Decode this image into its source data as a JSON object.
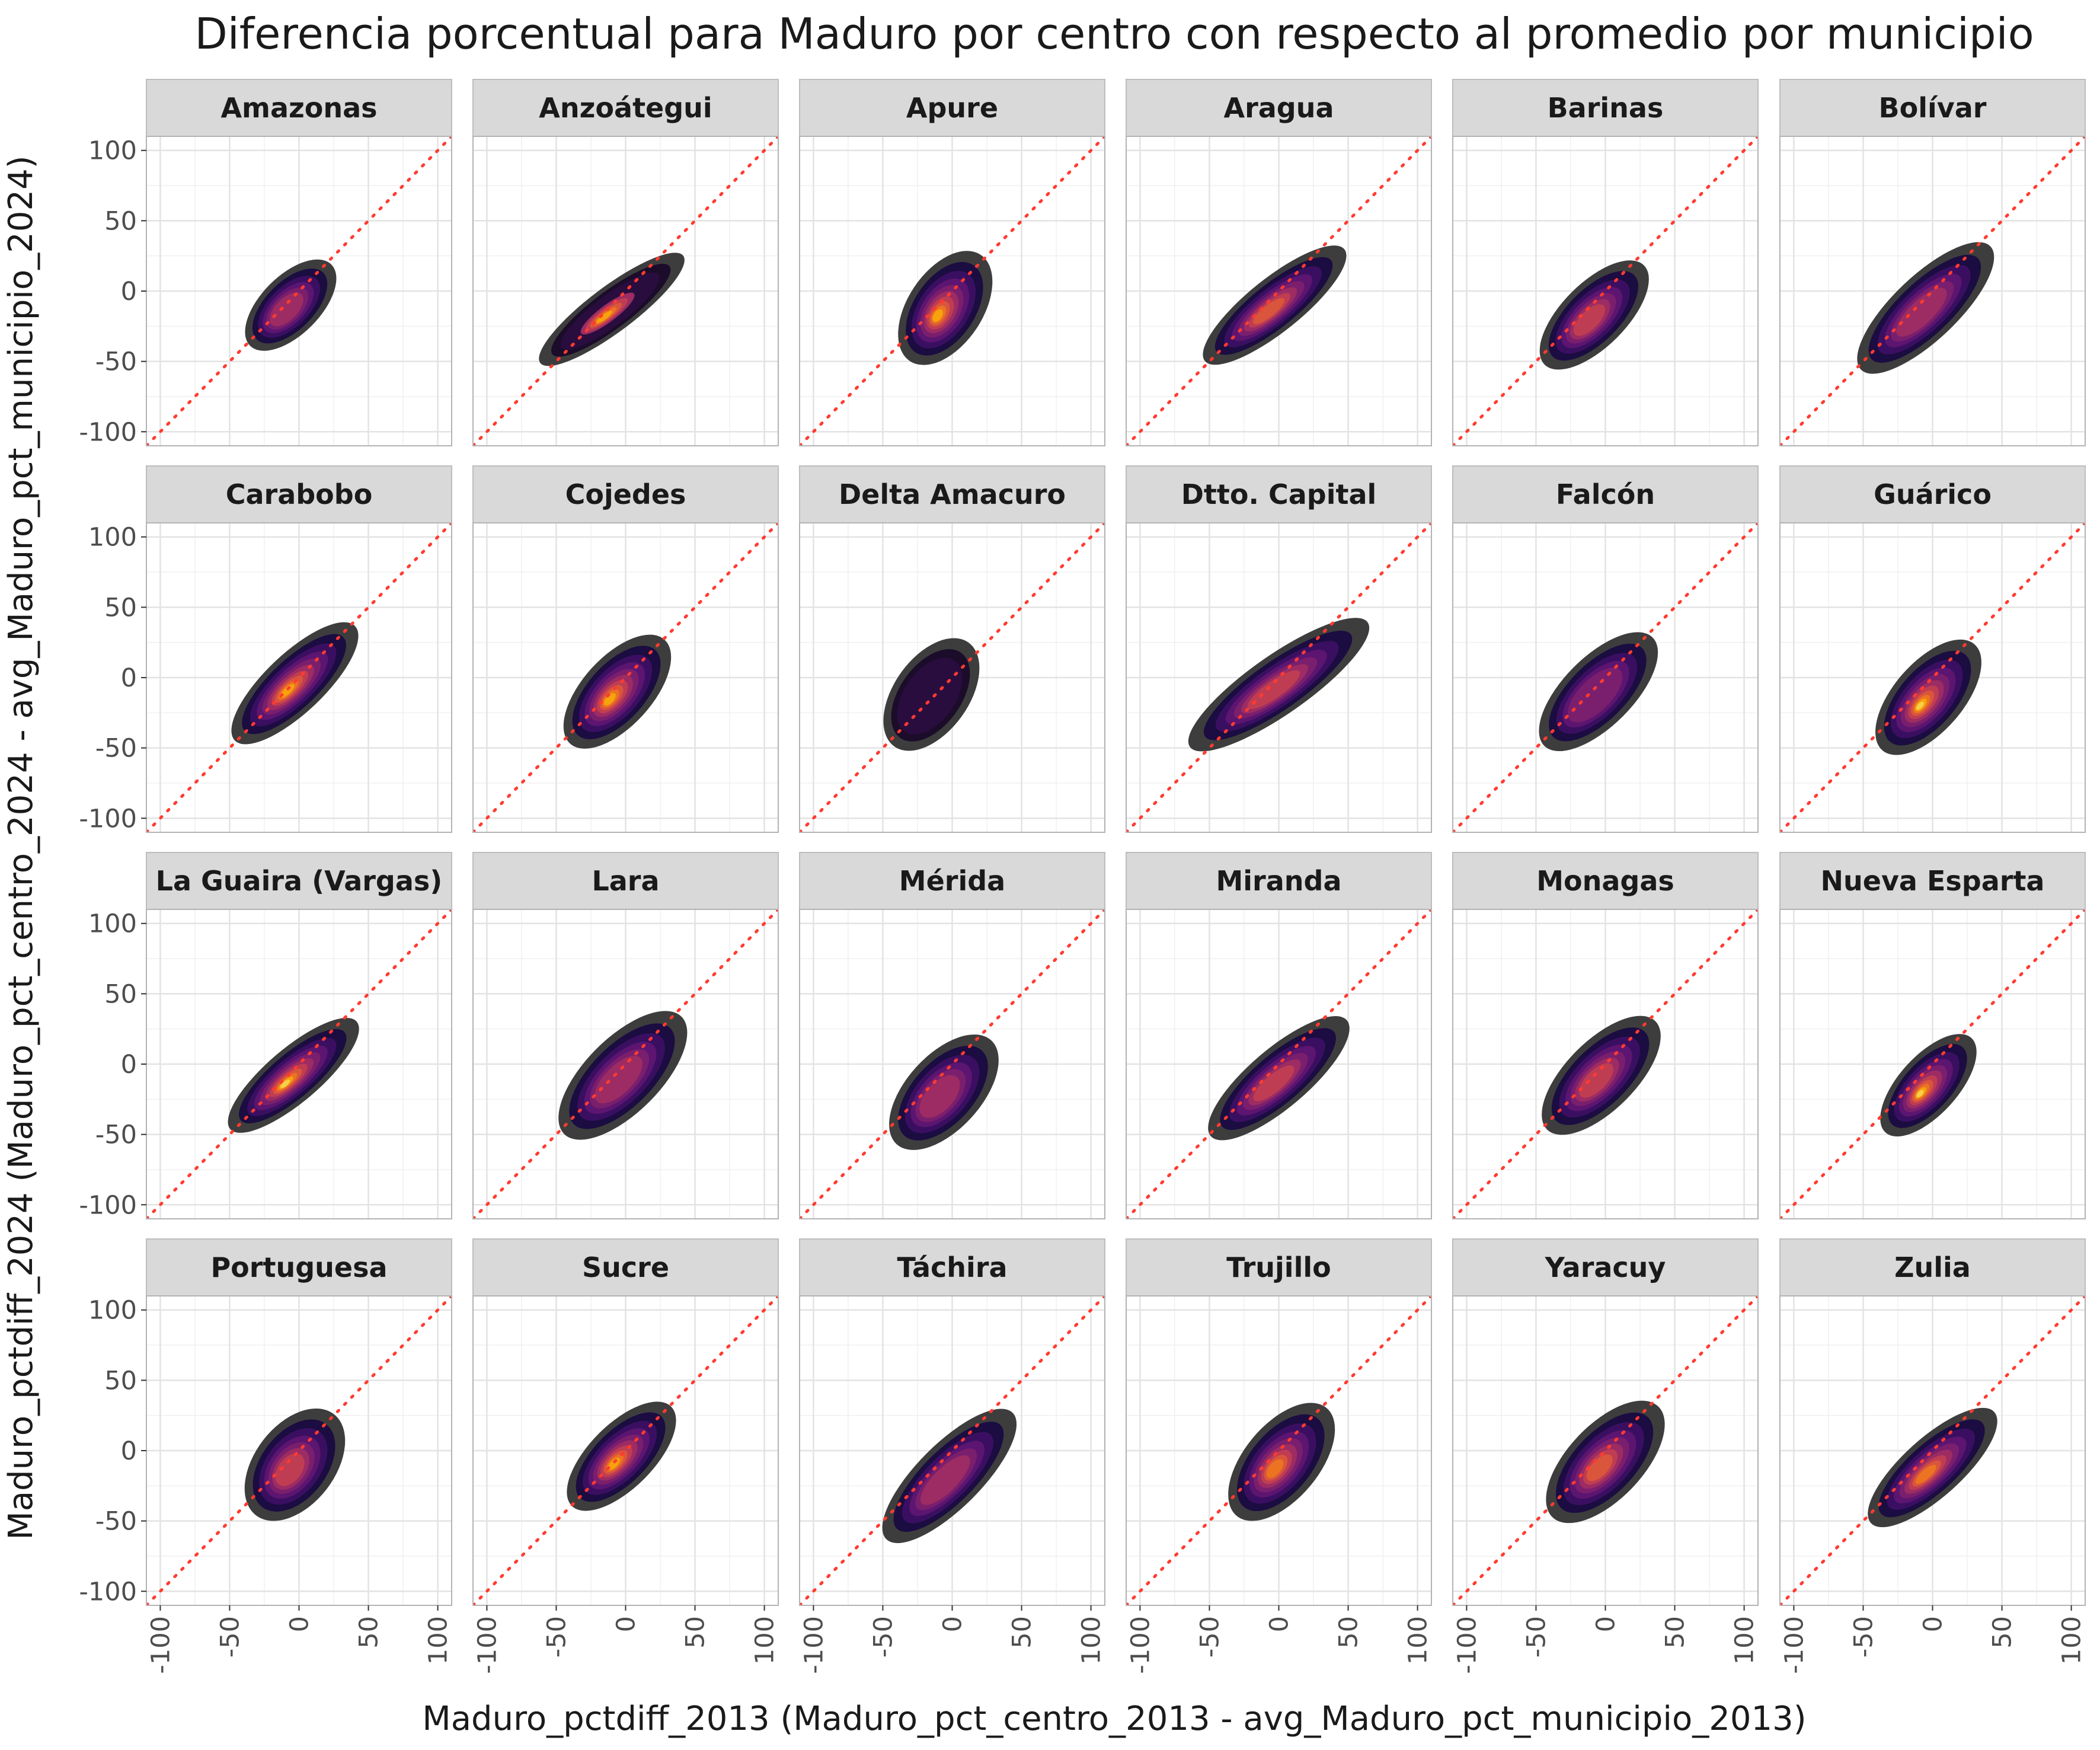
{
  "chart_data": {
    "type": "density2d-facet",
    "title": "Diferencia porcentual para Maduro por centro con respecto al promedio por municipio",
    "xlabel": "Maduro_pctdiff_2013 (Maduro_pct_centro_2013 - avg_Maduro_pct_municipio_2013)",
    "ylabel": "Maduro_pctdiff_2024 (Maduro_pct_centro_2024 - avg_Maduro_pct_municipio_2024)",
    "xlim": [
      -110,
      110
    ],
    "ylim": [
      -110,
      110
    ],
    "x_ticks": [
      -100,
      -50,
      0,
      50,
      100
    ],
    "y_ticks": [
      -100,
      -50,
      0,
      50,
      100
    ],
    "x_tick_labels": [
      "-100",
      "-50",
      "0",
      "50",
      "100"
    ],
    "y_tick_labels": [
      "-100",
      "-50",
      "0",
      "50",
      "100"
    ],
    "grid": true,
    "reference_line": {
      "type": "identity",
      "slope": 1,
      "intercept": 0,
      "style": "dotted",
      "color": "#ff3b30"
    },
    "fill_palette": [
      "#333333",
      "#1b0c41",
      "#3a0f61",
      "#5c1570",
      "#7a1f6d",
      "#9c2c63",
      "#bf3d52",
      "#d9553c",
      "#ec7322",
      "#f7a30b",
      "#f6d04a"
    ],
    "panels": [
      {
        "name": "Amazonas",
        "cx": -6,
        "cy": -10,
        "slope": 1.0,
        "sx": 18,
        "sy": 22,
        "peak": 5
      },
      {
        "name": "Anzoátegui",
        "cx": -10,
        "cy": -13,
        "slope": 0.75,
        "sx": 28,
        "sy": 17,
        "peak": 9,
        "dark": true
      },
      {
        "name": "Apure",
        "cx": -5,
        "cy": -12,
        "slope": 1.5,
        "sx": 20,
        "sy": 28,
        "peak": 9
      },
      {
        "name": "Aragua",
        "cx": -3,
        "cy": -10,
        "slope": 0.8,
        "sx": 28,
        "sy": 20,
        "peak": 7
      },
      {
        "name": "Barinas",
        "cx": -8,
        "cy": -17,
        "slope": 1.0,
        "sx": 22,
        "sy": 24,
        "peak": 6
      },
      {
        "name": "Bolívar",
        "cx": -5,
        "cy": -12,
        "slope": 0.95,
        "sx": 28,
        "sy": 24,
        "peak": 5
      },
      {
        "name": "Carabobo",
        "cx": -3,
        "cy": -4,
        "slope": 0.95,
        "sx": 26,
        "sy": 22,
        "peak": 9
      },
      {
        "name": "Cojedes",
        "cx": -6,
        "cy": -10,
        "slope": 1.1,
        "sx": 22,
        "sy": 26,
        "peak": 9
      },
      {
        "name": "Delta Amacuro",
        "cx": -15,
        "cy": -12,
        "slope": 1.4,
        "sx": 20,
        "sy": 28,
        "peak": 2,
        "dark": true
      },
      {
        "name": "Dtto. Capital",
        "cx": 0,
        "cy": -5,
        "slope": 0.7,
        "sx": 34,
        "sy": 22,
        "peak": 6
      },
      {
        "name": "Falcón",
        "cx": -5,
        "cy": -10,
        "slope": 1.0,
        "sx": 24,
        "sy": 26,
        "peak": 4
      },
      {
        "name": "Guárico",
        "cx": -3,
        "cy": -14,
        "slope": 1.15,
        "sx": 22,
        "sy": 26,
        "peak": 10
      },
      {
        "name": "La Guaira (Vargas)",
        "cx": -4,
        "cy": -8,
        "slope": 0.85,
        "sx": 26,
        "sy": 20,
        "peak": 10
      },
      {
        "name": "Lara",
        "cx": -2,
        "cy": -8,
        "slope": 1.0,
        "sx": 26,
        "sy": 28,
        "peak": 5
      },
      {
        "name": "Mérida",
        "cx": -6,
        "cy": -20,
        "slope": 1.1,
        "sx": 22,
        "sy": 28,
        "peak": 5
      },
      {
        "name": "Miranda",
        "cx": 0,
        "cy": -10,
        "slope": 0.85,
        "sx": 28,
        "sy": 22,
        "peak": 6
      },
      {
        "name": "Monagas",
        "cx": -3,
        "cy": -8,
        "slope": 1.0,
        "sx": 24,
        "sy": 26,
        "peak": 6
      },
      {
        "name": "Nueva Esparta",
        "cx": -3,
        "cy": -15,
        "slope": 1.1,
        "sx": 20,
        "sy": 22,
        "peak": 10
      },
      {
        "name": "Portuguesa",
        "cx": -3,
        "cy": -10,
        "slope": 1.3,
        "sx": 20,
        "sy": 30,
        "peak": 6
      },
      {
        "name": "Sucre",
        "cx": -3,
        "cy": -4,
        "slope": 1.0,
        "sx": 22,
        "sy": 24,
        "peak": 9
      },
      {
        "name": "Táchira",
        "cx": -2,
        "cy": -18,
        "slope": 1.0,
        "sx": 28,
        "sy": 24,
        "peak": 5
      },
      {
        "name": "Trujillo",
        "cx": 2,
        "cy": -8,
        "slope": 1.2,
        "sx": 22,
        "sy": 28,
        "peak": 8
      },
      {
        "name": "Yaracuy",
        "cx": 0,
        "cy": -8,
        "slope": 1.05,
        "sx": 24,
        "sy": 28,
        "peak": 7
      },
      {
        "name": "Zulia",
        "cx": 0,
        "cy": -12,
        "slope": 0.9,
        "sx": 26,
        "sy": 22,
        "peak": 8
      }
    ]
  }
}
